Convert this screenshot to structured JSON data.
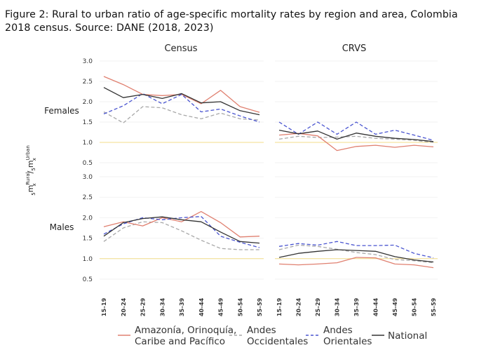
{
  "caption": "Figure 2: Rural to urban ratio of age-specific mortality rates by region and area, Colombia 2018 census. Source: DANE (2018, 2023)",
  "chart_data": {
    "type": "line",
    "panels": [
      "Census",
      "CRVS"
    ],
    "rows": [
      "Females",
      "Males"
    ],
    "categories": [
      "15–19",
      "20–24",
      "25–29",
      "30–34",
      "35–39",
      "40–44",
      "45–49",
      "50–54",
      "55–59"
    ],
    "y_ticks": [
      "0.5",
      "1.0",
      "1.5",
      "2.0",
      "2.5",
      "3.0"
    ],
    "ylim": [
      0.5,
      3.0
    ],
    "reference_line": 1.0,
    "ylabel": {
      "base_left": "m",
      "sub_left": "x",
      "pre_sub_left": "5",
      "sup_left": "Rural",
      "sep": "/",
      "base_right": "m",
      "sub_right": "x",
      "pre_sub_right": "5",
      "sup_right": "Urban"
    },
    "legend": [
      {
        "key": "amazonia",
        "line1": "Amazonía, Orinoquía,",
        "line2": "Caribe and Pacífico",
        "color": "#e08070",
        "dash": "solid"
      },
      {
        "key": "occidentales",
        "line1": "Andes",
        "line2": "Occidentales",
        "color": "#a8a8a8",
        "dash": "dashed"
      },
      {
        "key": "orientales",
        "line1": "Andes",
        "line2": "Orientales",
        "color": "#4a55d0",
        "dash": "dashed"
      },
      {
        "key": "national",
        "line1": "National",
        "line2": "",
        "color": "#333333",
        "dash": "solid"
      }
    ],
    "data": {
      "Females": {
        "Census": {
          "amazonia": [
            2.62,
            2.42,
            2.18,
            2.15,
            2.18,
            1.95,
            2.28,
            1.88,
            1.74
          ],
          "occidentales": [
            1.75,
            1.48,
            1.88,
            1.85,
            1.68,
            1.58,
            1.72,
            1.58,
            1.55
          ],
          "orientales": [
            1.7,
            1.9,
            2.2,
            1.95,
            2.18,
            1.75,
            1.82,
            1.65,
            1.5
          ],
          "national": [
            2.35,
            2.1,
            2.18,
            2.08,
            2.2,
            1.97,
            2.0,
            1.78,
            1.68
          ]
        },
        "CRVS": {
          "amazonia": [
            1.18,
            1.22,
            1.16,
            0.8,
            0.9,
            0.93,
            0.88,
            0.93,
            0.89
          ],
          "occidentales": [
            1.08,
            1.15,
            1.12,
            1.13,
            1.15,
            1.1,
            1.08,
            1.05,
            1.0
          ],
          "orientales": [
            1.5,
            1.2,
            1.5,
            1.2,
            1.5,
            1.2,
            1.3,
            1.18,
            1.05
          ],
          "national": [
            1.3,
            1.21,
            1.28,
            1.08,
            1.23,
            1.15,
            1.1,
            1.07,
            1.02
          ]
        }
      },
      "Males": {
        "Census": {
          "amazonia": [
            1.78,
            1.9,
            1.8,
            2.0,
            1.9,
            2.15,
            1.88,
            1.53,
            1.55
          ],
          "occidentales": [
            1.42,
            1.75,
            1.9,
            1.88,
            1.68,
            1.45,
            1.25,
            1.22,
            1.22
          ],
          "orientales": [
            1.6,
            1.85,
            2.0,
            1.95,
            2.0,
            2.03,
            1.55,
            1.4,
            1.27
          ],
          "national": [
            1.55,
            1.88,
            1.98,
            2.02,
            1.95,
            1.9,
            1.65,
            1.42,
            1.38
          ]
        },
        "CRVS": {
          "amazonia": [
            0.87,
            0.85,
            0.87,
            0.9,
            1.03,
            1.02,
            0.87,
            0.85,
            0.78
          ],
          "occidentales": [
            1.22,
            1.33,
            1.3,
            1.23,
            1.15,
            1.1,
            0.98,
            0.95,
            0.9
          ],
          "orientales": [
            1.3,
            1.37,
            1.33,
            1.42,
            1.32,
            1.32,
            1.33,
            1.13,
            1.02
          ],
          "national": [
            1.03,
            1.13,
            1.18,
            1.22,
            1.2,
            1.18,
            1.05,
            0.97,
            0.92
          ]
        }
      }
    }
  }
}
